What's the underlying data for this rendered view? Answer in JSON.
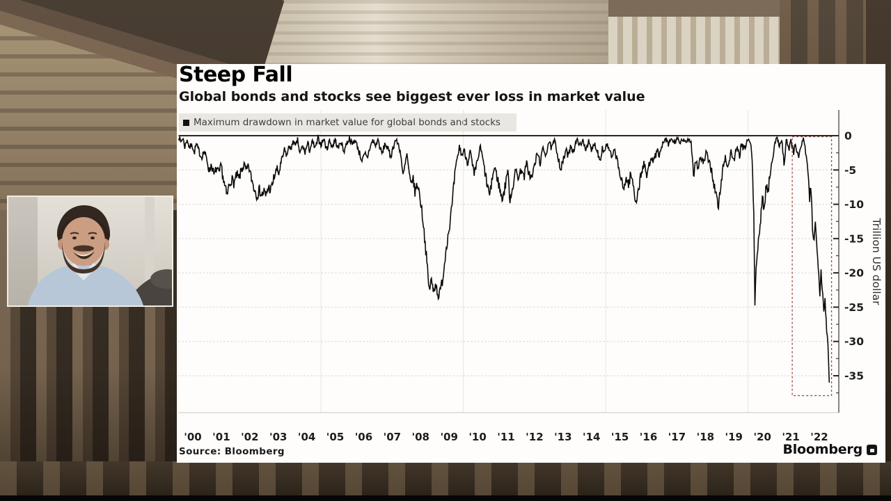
{
  "chart_panel": {
    "title": "Steep Fall",
    "subtitle": "Global bonds and stocks see biggest ever loss in market value",
    "legend": {
      "label": "Maximum drawdown in market value for global bonds and stocks"
    },
    "source": "Source: Bloomberg",
    "brand": "Bloomberg"
  },
  "chart_data": {
    "type": "line",
    "title": "Steep Fall",
    "subtitle": "Global bonds and stocks see biggest ever loss in market value",
    "series_name": "Maximum drawdown in market value for global bonds and stocks",
    "ylabel": "Trillion US dollar",
    "ylim": [
      -40,
      0
    ],
    "ytick_values": [
      0,
      -5,
      -10,
      -15,
      -20,
      -25,
      -30,
      -35
    ],
    "ytick_labels": [
      "0",
      "-5",
      "-10",
      "-15",
      "-20",
      "-25",
      "-30",
      "-35"
    ],
    "xtick_labels": [
      "'00",
      "'01",
      "'02",
      "'03",
      "'04",
      "'05",
      "'06",
      "'07",
      "'08",
      "'09",
      "'10",
      "'11",
      "'12",
      "'13",
      "'14",
      "'15",
      "'16",
      "'17",
      "'18",
      "'19",
      "'20",
      "'21",
      "'22"
    ],
    "x_range_years": [
      2000,
      2023.2
    ],
    "grid_year_lines": [
      2005,
      2010,
      2015,
      2020
    ],
    "line_color": "#0a0a0a",
    "highlight_box": {
      "x0": 2021.55,
      "x1": 2022.93,
      "y0": -0.15,
      "y1": -37.9,
      "color": "#a04848"
    },
    "keyframes": [
      [
        2000.0,
        -0.1
      ],
      [
        2000.08,
        -0.9
      ],
      [
        2000.15,
        -0.3
      ],
      [
        2000.22,
        -1.6
      ],
      [
        2000.3,
        -0.5
      ],
      [
        2000.38,
        -1.9
      ],
      [
        2000.46,
        -1.0
      ],
      [
        2000.54,
        -2.6
      ],
      [
        2000.62,
        -1.3
      ],
      [
        2000.7,
        -2.1
      ],
      [
        2000.8,
        -3.1
      ],
      [
        2000.9,
        -2.3
      ],
      [
        2001.0,
        -3.6
      ],
      [
        2001.08,
        -5.2
      ],
      [
        2001.15,
        -4.1
      ],
      [
        2001.25,
        -5.9
      ],
      [
        2001.33,
        -4.7
      ],
      [
        2001.42,
        -5.6
      ],
      [
        2001.5,
        -4.3
      ],
      [
        2001.58,
        -6.6
      ],
      [
        2001.7,
        -8.9
      ],
      [
        2001.76,
        -7.5
      ],
      [
        2001.85,
        -6.3
      ],
      [
        2001.95,
        -6.9
      ],
      [
        2002.05,
        -5.7
      ],
      [
        2002.12,
        -6.4
      ],
      [
        2002.2,
        -5.1
      ],
      [
        2002.3,
        -4.3
      ],
      [
        2002.38,
        -5.2
      ],
      [
        2002.46,
        -4.5
      ],
      [
        2002.55,
        -6.1
      ],
      [
        2002.65,
        -7.6
      ],
      [
        2002.75,
        -8.6
      ],
      [
        2002.85,
        -7.9
      ],
      [
        2002.92,
        -8.7
      ],
      [
        2003.0,
        -8.1
      ],
      [
        2003.06,
        -8.9
      ],
      [
        2003.15,
        -7.5
      ],
      [
        2003.25,
        -7.9
      ],
      [
        2003.35,
        -6.1
      ],
      [
        2003.45,
        -4.9
      ],
      [
        2003.52,
        -5.5
      ],
      [
        2003.62,
        -3.7
      ],
      [
        2003.72,
        -2.1
      ],
      [
        2003.8,
        -2.9
      ],
      [
        2003.9,
        -1.3
      ],
      [
        2003.96,
        -2.3
      ],
      [
        2004.02,
        -0.5
      ],
      [
        2004.1,
        -1.7
      ],
      [
        2004.18,
        -0.6
      ],
      [
        2004.26,
        -2.7
      ],
      [
        2004.35,
        -1.5
      ],
      [
        2004.44,
        -2.4
      ],
      [
        2004.54,
        -1.1
      ],
      [
        2004.6,
        -2.1
      ],
      [
        2004.7,
        -0.9
      ],
      [
        2004.8,
        -1.9
      ],
      [
        2004.9,
        -0.4
      ],
      [
        2005.0,
        -1.3
      ],
      [
        2005.1,
        -0.5
      ],
      [
        2005.2,
        -2.0
      ],
      [
        2005.3,
        -0.7
      ],
      [
        2005.4,
        -1.6
      ],
      [
        2005.5,
        -0.6
      ],
      [
        2005.6,
        -1.9
      ],
      [
        2005.7,
        -0.8
      ],
      [
        2005.8,
        -2.3
      ],
      [
        2005.9,
        -1.1
      ],
      [
        2006.0,
        -0.4
      ],
      [
        2006.1,
        -1.3
      ],
      [
        2006.2,
        -0.6
      ],
      [
        2006.35,
        -2.5
      ],
      [
        2006.45,
        -3.7
      ],
      [
        2006.55,
        -2.7
      ],
      [
        2006.62,
        -3.3
      ],
      [
        2006.72,
        -1.7
      ],
      [
        2006.82,
        -0.7
      ],
      [
        2006.92,
        -1.5
      ],
      [
        2007.0,
        -0.5
      ],
      [
        2007.08,
        -1.9
      ],
      [
        2007.15,
        -2.7
      ],
      [
        2007.25,
        -1.1
      ],
      [
        2007.35,
        -2.0
      ],
      [
        2007.45,
        -3.0
      ],
      [
        2007.55,
        -1.5
      ],
      [
        2007.62,
        -0.6
      ],
      [
        2007.72,
        -1.3
      ],
      [
        2007.8,
        -2.5
      ],
      [
        2007.88,
        -6.1
      ],
      [
        2007.95,
        -4.4
      ],
      [
        2008.02,
        -2.7
      ],
      [
        2008.08,
        -5.1
      ],
      [
        2008.15,
        -7.3
      ],
      [
        2008.22,
        -6.0
      ],
      [
        2008.3,
        -8.1
      ],
      [
        2008.4,
        -7.0
      ],
      [
        2008.5,
        -9.6
      ],
      [
        2008.58,
        -12.1
      ],
      [
        2008.68,
        -16.6
      ],
      [
        2008.75,
        -20.1
      ],
      [
        2008.8,
        -22.5
      ],
      [
        2008.87,
        -21.0
      ],
      [
        2008.95,
        -22.8
      ],
      [
        2009.02,
        -21.4
      ],
      [
        2009.08,
        -22.6
      ],
      [
        2009.15,
        -23.5
      ],
      [
        2009.25,
        -21.4
      ],
      [
        2009.32,
        -19.4
      ],
      [
        2009.4,
        -16.1
      ],
      [
        2009.48,
        -14.1
      ],
      [
        2009.55,
        -12.0
      ],
      [
        2009.62,
        -9.6
      ],
      [
        2009.7,
        -5.7
      ],
      [
        2009.8,
        -3.1
      ],
      [
        2009.86,
        -1.6
      ],
      [
        2009.95,
        -2.9
      ],
      [
        2010.02,
        -2.1
      ],
      [
        2010.15,
        -3.9
      ],
      [
        2010.24,
        -2.3
      ],
      [
        2010.38,
        -5.9
      ],
      [
        2010.5,
        -3.6
      ],
      [
        2010.6,
        -1.6
      ],
      [
        2010.7,
        -3.9
      ],
      [
        2010.84,
        -7.3
      ],
      [
        2010.94,
        -8.9
      ],
      [
        2011.0,
        -6.4
      ],
      [
        2011.1,
        -4.6
      ],
      [
        2011.22,
        -6.6
      ],
      [
        2011.35,
        -9.2
      ],
      [
        2011.45,
        -7.9
      ],
      [
        2011.55,
        -4.9
      ],
      [
        2011.64,
        -9.3
      ],
      [
        2011.75,
        -7.0
      ],
      [
        2011.85,
        -5.0
      ],
      [
        2011.95,
        -6.2
      ],
      [
        2012.05,
        -4.5
      ],
      [
        2012.12,
        -6.3
      ],
      [
        2012.22,
        -4.1
      ],
      [
        2012.32,
        -5.6
      ],
      [
        2012.4,
        -6.3
      ],
      [
        2012.5,
        -4.3
      ],
      [
        2012.6,
        -2.6
      ],
      [
        2012.7,
        -3.9
      ],
      [
        2012.8,
        -1.9
      ],
      [
        2012.9,
        -2.7
      ],
      [
        2013.0,
        -0.9
      ],
      [
        2013.1,
        -1.9
      ],
      [
        2013.2,
        -0.7
      ],
      [
        2013.32,
        -2.9
      ],
      [
        2013.42,
        -4.9
      ],
      [
        2013.52,
        -3.5
      ],
      [
        2013.6,
        -2.1
      ],
      [
        2013.7,
        -3.1
      ],
      [
        2013.76,
        -1.3
      ],
      [
        2013.86,
        -2.3
      ],
      [
        2013.95,
        -1.1
      ],
      [
        2014.02,
        -0.6
      ],
      [
        2014.12,
        -1.6
      ],
      [
        2014.2,
        -0.7
      ],
      [
        2014.3,
        -1.9
      ],
      [
        2014.4,
        -0.9
      ],
      [
        2014.5,
        -2.3
      ],
      [
        2014.6,
        -1.1
      ],
      [
        2014.7,
        -2.1
      ],
      [
        2014.8,
        -3.6
      ],
      [
        2014.88,
        -1.7
      ],
      [
        2014.95,
        -2.5
      ],
      [
        2015.02,
        -1.1
      ],
      [
        2015.12,
        -2.1
      ],
      [
        2015.22,
        -3.3
      ],
      [
        2015.32,
        -2.1
      ],
      [
        2015.45,
        -4.6
      ],
      [
        2015.55,
        -6.6
      ],
      [
        2015.62,
        -8.1
      ],
      [
        2015.7,
        -6.1
      ],
      [
        2015.8,
        -7.1
      ],
      [
        2015.88,
        -5.6
      ],
      [
        2015.96,
        -7.1
      ],
      [
        2016.05,
        -9.6
      ],
      [
        2016.14,
        -8.1
      ],
      [
        2016.24,
        -5.6
      ],
      [
        2016.34,
        -4.1
      ],
      [
        2016.44,
        -5.9
      ],
      [
        2016.5,
        -4.7
      ],
      [
        2016.6,
        -2.9
      ],
      [
        2016.7,
        -3.7
      ],
      [
        2016.8,
        -2.1
      ],
      [
        2016.9,
        -2.9
      ],
      [
        2017.0,
        -1.3
      ],
      [
        2017.1,
        -0.5
      ],
      [
        2017.2,
        -1.4
      ],
      [
        2017.3,
        -0.4
      ],
      [
        2017.4,
        -1.1
      ],
      [
        2017.5,
        -0.3
      ],
      [
        2017.6,
        -1.3
      ],
      [
        2017.7,
        -0.5
      ],
      [
        2017.8,
        -1.1
      ],
      [
        2017.9,
        -0.4
      ],
      [
        2018.0,
        -0.9
      ],
      [
        2018.09,
        -5.8
      ],
      [
        2018.16,
        -3.6
      ],
      [
        2018.25,
        -4.6
      ],
      [
        2018.34,
        -3.1
      ],
      [
        2018.44,
        -4.1
      ],
      [
        2018.52,
        -2.6
      ],
      [
        2018.62,
        -3.6
      ],
      [
        2018.72,
        -5.1
      ],
      [
        2018.82,
        -7.6
      ],
      [
        2018.9,
        -9.1
      ],
      [
        2018.96,
        -10.5
      ],
      [
        2019.02,
        -8.1
      ],
      [
        2019.1,
        -5.1
      ],
      [
        2019.2,
        -3.1
      ],
      [
        2019.3,
        -4.6
      ],
      [
        2019.4,
        -2.3
      ],
      [
        2019.5,
        -3.6
      ],
      [
        2019.6,
        -1.9
      ],
      [
        2019.7,
        -2.9
      ],
      [
        2019.76,
        -1.3
      ],
      [
        2019.86,
        -2.1
      ],
      [
        2019.95,
        -0.9
      ],
      [
        2020.02,
        -0.5
      ],
      [
        2020.1,
        -1.6
      ],
      [
        2020.15,
        -4.1
      ],
      [
        2020.2,
        -12.1
      ],
      [
        2020.24,
        -24.1
      ],
      [
        2020.3,
        -18.1
      ],
      [
        2020.36,
        -15.1
      ],
      [
        2020.44,
        -12.6
      ],
      [
        2020.5,
        -9.1
      ],
      [
        2020.56,
        -10.6
      ],
      [
        2020.64,
        -7.1
      ],
      [
        2020.7,
        -8.1
      ],
      [
        2020.8,
        -4.6
      ],
      [
        2020.9,
        -2.1
      ],
      [
        2020.96,
        -0.9
      ],
      [
        2021.02,
        -0.4
      ],
      [
        2021.1,
        -1.3
      ],
      [
        2021.18,
        -0.5
      ],
      [
        2021.27,
        -4.4
      ],
      [
        2021.34,
        -0.6
      ],
      [
        2021.44,
        -1.9
      ],
      [
        2021.5,
        -0.7
      ],
      [
        2021.6,
        -2.6
      ],
      [
        2021.66,
        -1.1
      ],
      [
        2021.76,
        -3.3
      ],
      [
        2021.85,
        -1.6
      ],
      [
        2021.94,
        -0.6
      ],
      [
        2022.0,
        -1.6
      ],
      [
        2022.06,
        -3.9
      ],
      [
        2022.12,
        -6.6
      ],
      [
        2022.16,
        -9.1
      ],
      [
        2022.21,
        -7.6
      ],
      [
        2022.26,
        -13.2
      ],
      [
        2022.31,
        -15.2
      ],
      [
        2022.36,
        -12.9
      ],
      [
        2022.42,
        -16.6
      ],
      [
        2022.47,
        -18.9
      ],
      [
        2022.52,
        -22.6
      ],
      [
        2022.56,
        -19.6
      ],
      [
        2022.61,
        -22.3
      ],
      [
        2022.66,
        -25.7
      ],
      [
        2022.7,
        -23.3
      ],
      [
        2022.75,
        -28.1
      ],
      [
        2022.8,
        -29.4
      ],
      [
        2022.85,
        -36.0
      ]
    ]
  }
}
